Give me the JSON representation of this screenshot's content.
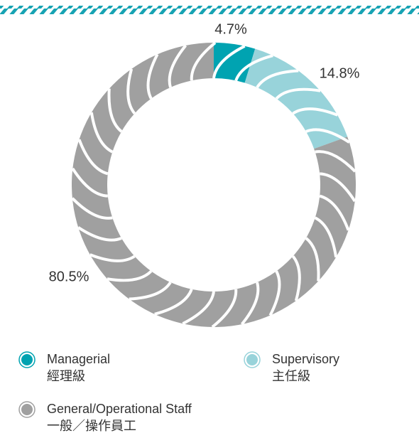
{
  "chart_data": {
    "type": "pie",
    "categories": [
      "Managerial",
      "Supervisory",
      "General/Operational Staff"
    ],
    "categories_zh": [
      "經理級",
      "主任級",
      "一般／操作員工"
    ],
    "values": [
      4.7,
      14.8,
      80.5
    ],
    "value_labels": [
      "4.7%",
      "14.8%",
      "80.5%"
    ],
    "colors": [
      "#00a3b1",
      "#98d3da",
      "#a0a0a0"
    ]
  }
}
